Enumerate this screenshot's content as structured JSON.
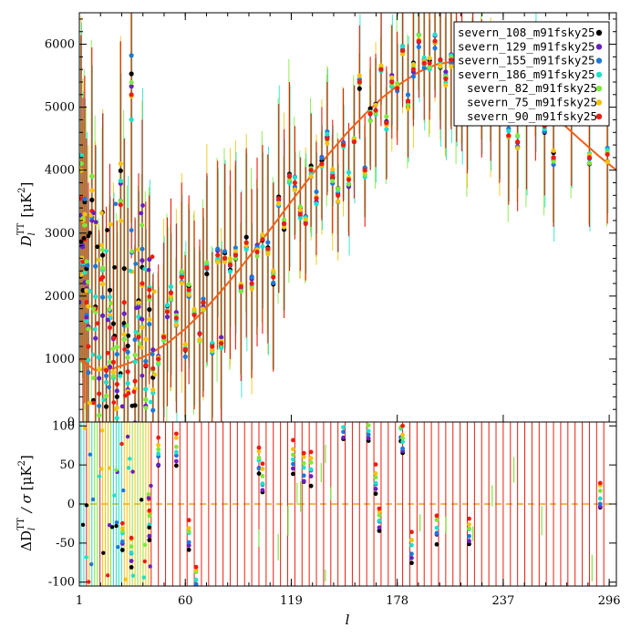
{
  "chart_data": [
    {
      "type": "scatter",
      "panel": "top",
      "ylabel_main": "D",
      "ylabel_sub": "l",
      "ylabel_sup": "TT",
      "ylabel_unit": "[μK",
      "ylabel_unit_sup": "2",
      "ylabel_unit_close": "]",
      "xlim": [
        1,
        300
      ],
      "ylim": [
        0,
        6500
      ],
      "yticks": [
        0,
        1000,
        2000,
        3000,
        4000,
        5000,
        6000
      ],
      "legend_position": "top-right",
      "series": [
        {
          "name": "severn_108_m91fsky25",
          "color": "#000000"
        },
        {
          "name": "severn_129_m91fsky25",
          "color": "#6a1fc0"
        },
        {
          "name": "severn_155_m91fsky25",
          "color": "#1f78d8"
        },
        {
          "name": "severn_186_m91fsky25",
          "color": "#1ee0c8"
        },
        {
          "name": "severn_82_m91fsky25",
          "color": "#7ee83a"
        },
        {
          "name": "severn_75_m91fsky25",
          "color": "#f5c20a"
        },
        {
          "name": "severn_90_m91fsky25",
          "color": "#ee1c10"
        }
      ],
      "model_curve": {
        "color": "#f06018",
        "x": [
          1,
          10,
          20,
          30,
          40,
          50,
          60,
          70,
          80,
          90,
          100,
          110,
          120,
          130,
          140,
          150,
          160,
          170,
          180,
          190,
          200,
          210,
          220,
          230,
          240,
          250,
          260,
          270,
          280,
          290,
          300
        ],
        "y": [
          1000,
          820,
          850,
          950,
          1080,
          1250,
          1480,
          1760,
          2080,
          2420,
          2790,
          3160,
          3540,
          3910,
          4260,
          4590,
          4890,
          5160,
          5380,
          5560,
          5680,
          5730,
          5710,
          5620,
          5460,
          5250,
          5000,
          4740,
          4480,
          4230,
          4000
        ]
      },
      "points": [
        {
          "x": 2,
          "y": 3550
        },
        {
          "x": 3,
          "y": 2550
        },
        {
          "x": 4,
          "y": 2900
        },
        {
          "x": 5,
          "y": 1900
        },
        {
          "x": 6,
          "y": 1200
        },
        {
          "x": 8,
          "y": 3350
        },
        {
          "x": 10,
          "y": 1800
        },
        {
          "x": 12,
          "y": 450
        },
        {
          "x": 14,
          "y": 2300
        },
        {
          "x": 16,
          "y": 820
        },
        {
          "x": 18,
          "y": 1500
        },
        {
          "x": 20,
          "y": 950
        },
        {
          "x": 22,
          "y": 600
        },
        {
          "x": 24,
          "y": 3450
        },
        {
          "x": 26,
          "y": 1900
        },
        {
          "x": 28,
          "y": 800
        },
        {
          "x": 30,
          "y": 5200
        },
        {
          "x": 32,
          "y": 650
        },
        {
          "x": 34,
          "y": 1350
        },
        {
          "x": 36,
          "y": 2200
        },
        {
          "x": 38,
          "y": 900
        },
        {
          "x": 40,
          "y": 2100
        },
        {
          "x": 42,
          "y": 850
        },
        {
          "x": 45,
          "y": 1000
        },
        {
          "x": 48,
          "y": 1350
        },
        {
          "x": 50,
          "y": 1750
        },
        {
          "x": 52,
          "y": 2050
        },
        {
          "x": 55,
          "y": 1650
        },
        {
          "x": 58,
          "y": 2300
        },
        {
          "x": 60,
          "y": 1150
        },
        {
          "x": 62,
          "y": 2100
        },
        {
          "x": 65,
          "y": 1700
        },
        {
          "x": 68,
          "y": 1400
        },
        {
          "x": 70,
          "y": 1900
        },
        {
          "x": 72,
          "y": 2450
        },
        {
          "x": 75,
          "y": 1200
        },
        {
          "x": 78,
          "y": 2650
        },
        {
          "x": 80,
          "y": 1250
        },
        {
          "x": 82,
          "y": 2600
        },
        {
          "x": 85,
          "y": 2500
        },
        {
          "x": 88,
          "y": 2650
        },
        {
          "x": 91,
          "y": 2150
        },
        {
          "x": 94,
          "y": 2850
        },
        {
          "x": 97,
          "y": 2200
        },
        {
          "x": 100,
          "y": 2700
        },
        {
          "x": 103,
          "y": 2900
        },
        {
          "x": 106,
          "y": 2750
        },
        {
          "x": 109,
          "y": 2300
        },
        {
          "x": 112,
          "y": 3550
        },
        {
          "x": 115,
          "y": 3150
        },
        {
          "x": 118,
          "y": 3900
        },
        {
          "x": 121,
          "y": 3800
        },
        {
          "x": 124,
          "y": 3300
        },
        {
          "x": 127,
          "y": 3150
        },
        {
          "x": 130,
          "y": 4000
        },
        {
          "x": 133,
          "y": 3550
        },
        {
          "x": 136,
          "y": 4100
        },
        {
          "x": 139,
          "y": 4500
        },
        {
          "x": 142,
          "y": 3900
        },
        {
          "x": 145,
          "y": 3600
        },
        {
          "x": 148,
          "y": 4400
        },
        {
          "x": 151,
          "y": 3850
        },
        {
          "x": 154,
          "y": 4450
        },
        {
          "x": 157,
          "y": 5400
        },
        {
          "x": 160,
          "y": 4000
        },
        {
          "x": 163,
          "y": 4900
        },
        {
          "x": 166,
          "y": 4950
        },
        {
          "x": 169,
          "y": 5600
        },
        {
          "x": 172,
          "y": 4750
        },
        {
          "x": 175,
          "y": 5400
        },
        {
          "x": 178,
          "y": 5300
        },
        {
          "x": 181,
          "y": 5900
        },
        {
          "x": 184,
          "y": 5100
        },
        {
          "x": 187,
          "y": 5600
        },
        {
          "x": 190,
          "y": 6050
        },
        {
          "x": 193,
          "y": 5700
        },
        {
          "x": 196,
          "y": 5700
        },
        {
          "x": 199,
          "y": 6050
        },
        {
          "x": 202,
          "y": 5750
        },
        {
          "x": 205,
          "y": 5450
        },
        {
          "x": 208,
          "y": 5750
        },
        {
          "x": 211,
          "y": 5550
        },
        {
          "x": 214,
          "y": 5400
        },
        {
          "x": 217,
          "y": 5050
        },
        {
          "x": 220,
          "y": 5800
        },
        {
          "x": 225,
          "y": 5300
        },
        {
          "x": 230,
          "y": 5250
        },
        {
          "x": 235,
          "y": 4900
        },
        {
          "x": 240,
          "y": 4550
        },
        {
          "x": 245,
          "y": 4450
        },
        {
          "x": 250,
          "y": 4800
        },
        {
          "x": 255,
          "y": 5250
        },
        {
          "x": 260,
          "y": 4700
        },
        {
          "x": 265,
          "y": 4200
        },
        {
          "x": 275,
          "y": 4850
        },
        {
          "x": 285,
          "y": 4200
        },
        {
          "x": 295,
          "y": 4250
        }
      ]
    },
    {
      "type": "scatter",
      "panel": "bottom",
      "ylabel_main": "ΔD",
      "ylabel_sub": "l",
      "ylabel_sup": "TT",
      "ylabel_mid": "/ σ",
      "ylabel_unit": "[μK",
      "ylabel_unit_sup": "2",
      "ylabel_unit_close": "]",
      "xlabel": "l",
      "xlim": [
        1,
        300
      ],
      "ylim": [
        -105,
        105
      ],
      "yticks": [
        -100,
        -50,
        0,
        50,
        100
      ],
      "xticks": [
        1,
        60,
        119,
        178,
        237,
        296
      ],
      "zero_line_color": "#f0a020",
      "points": [
        {
          "x": 25,
          "y": -40
        },
        {
          "x": 30,
          "y": -60
        },
        {
          "x": 40,
          "y": -25
        },
        {
          "x": 45,
          "y": 65
        },
        {
          "x": 55,
          "y": 70
        },
        {
          "x": 62,
          "y": -40
        },
        {
          "x": 66,
          "y": -95
        },
        {
          "x": 101,
          "y": 55
        },
        {
          "x": 103,
          "y": 30
        },
        {
          "x": 120,
          "y": 60
        },
        {
          "x": 126,
          "y": 45
        },
        {
          "x": 130,
          "y": 45
        },
        {
          "x": 148,
          "y": 100
        },
        {
          "x": 162,
          "y": 95
        },
        {
          "x": 166,
          "y": 30
        },
        {
          "x": 168,
          "y": -20
        },
        {
          "x": 180,
          "y": 95
        },
        {
          "x": 181,
          "y": 80
        },
        {
          "x": 186,
          "y": -55
        },
        {
          "x": 200,
          "y": -30
        },
        {
          "x": 218,
          "y": -35
        },
        {
          "x": 291,
          "y": 10
        }
      ]
    }
  ]
}
